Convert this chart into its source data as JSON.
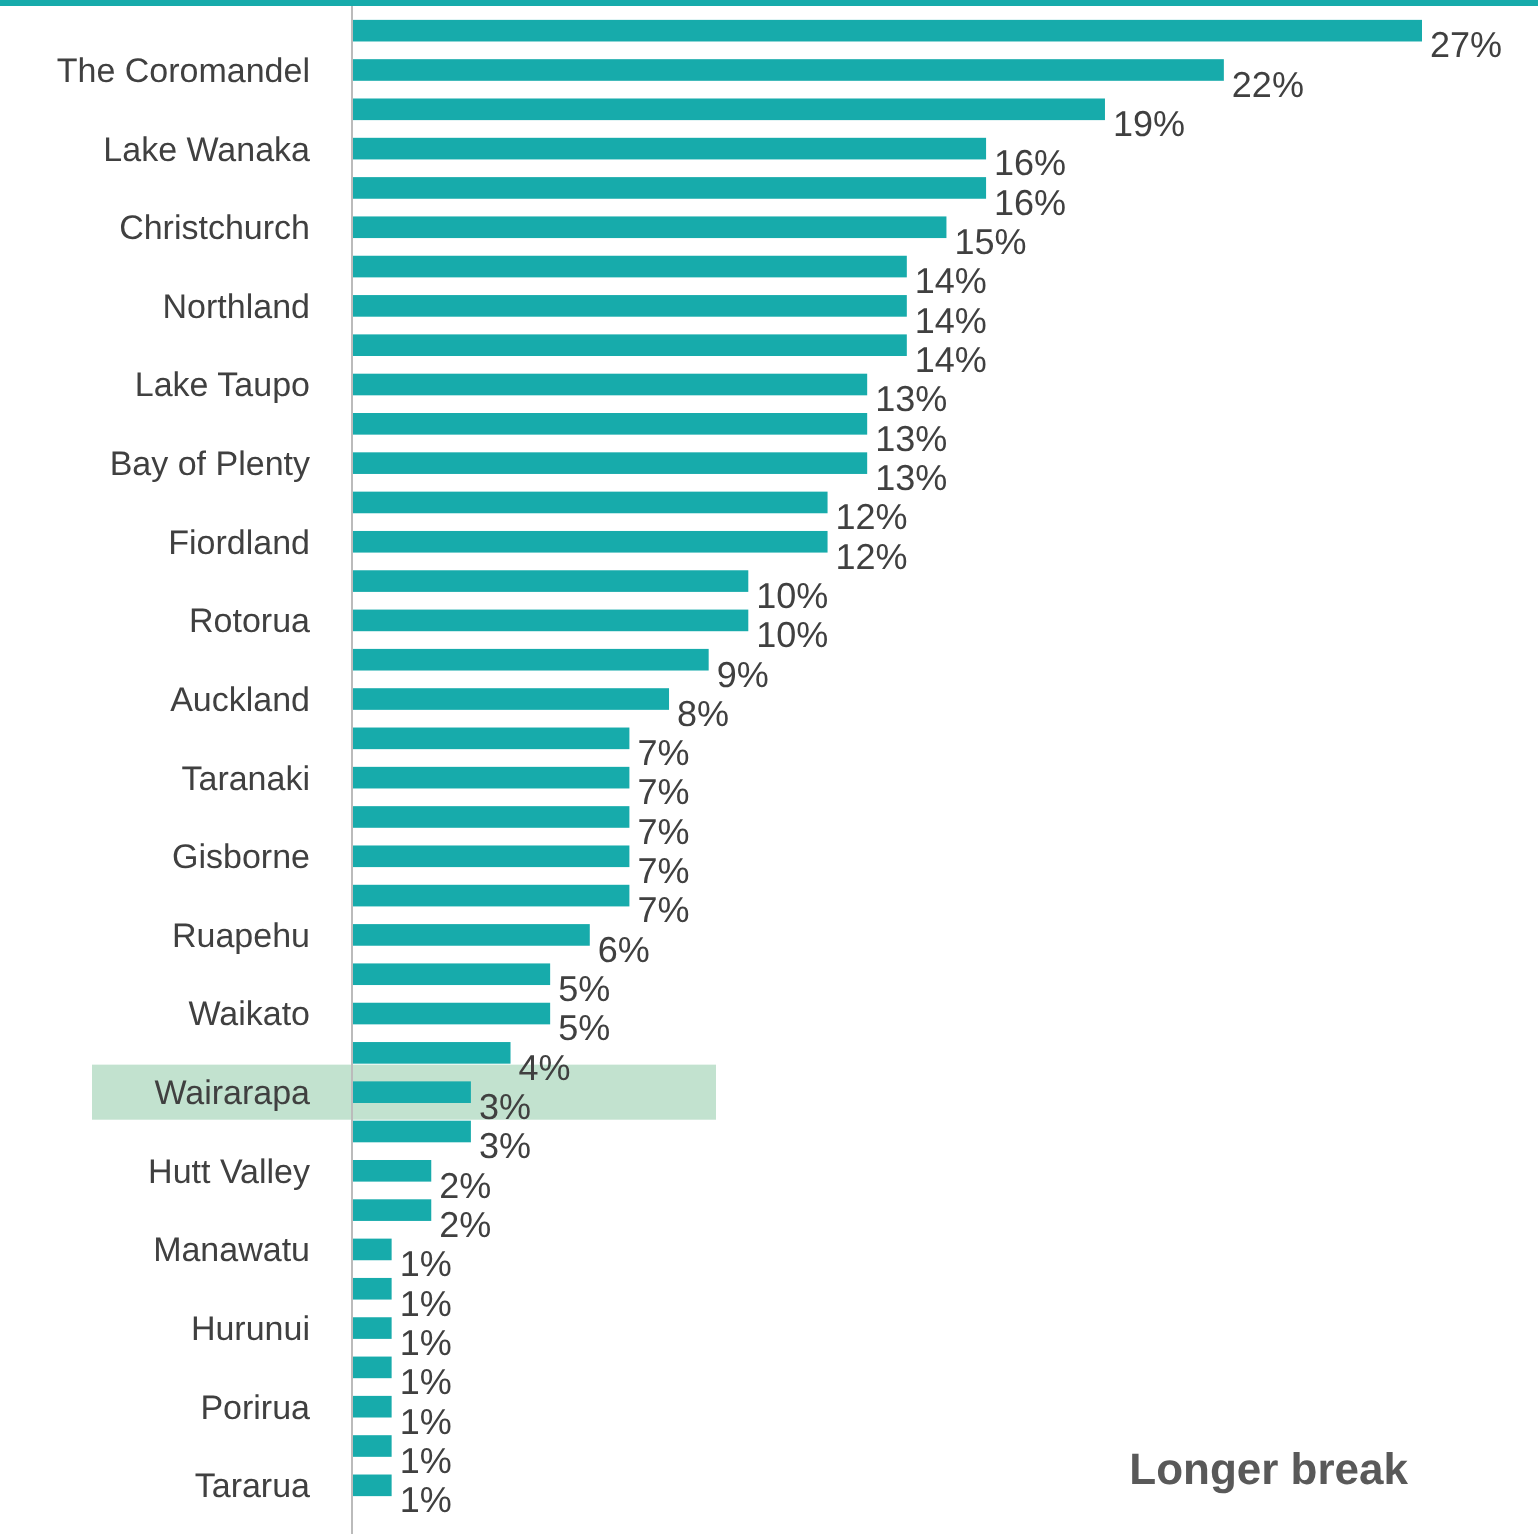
{
  "chart_data": {
    "type": "bar",
    "orientation": "horizontal",
    "title": "Longer break",
    "categories": [
      null,
      "The Coromandel",
      null,
      "Lake Wanaka",
      null,
      "Christchurch",
      null,
      "Northland",
      null,
      "Lake Taupo",
      null,
      "Bay of Plenty",
      null,
      "Fiordland",
      null,
      "Rotorua",
      null,
      "Auckland",
      null,
      "Taranaki",
      null,
      "Gisborne",
      null,
      "Ruapehu",
      null,
      "Waikato",
      null,
      "Wairarapa",
      null,
      "Hutt Valley",
      null,
      "Manawatu",
      null,
      "Hurunui",
      null,
      "Porirua",
      null,
      "Tararua"
    ],
    "values": [
      27,
      22,
      19,
      16,
      16,
      15,
      14,
      14,
      14,
      13,
      13,
      13,
      12,
      12,
      10,
      10,
      9,
      8,
      7,
      7,
      7,
      7,
      7,
      6,
      5,
      5,
      4,
      3,
      3,
      2,
      2,
      1,
      1,
      1,
      1,
      1,
      1,
      1
    ],
    "value_labels": [
      "27%",
      "22%",
      "19%",
      "16%",
      "16%",
      "15%",
      "14%",
      "14%",
      "14%",
      "13%",
      "13%",
      "13%",
      "12%",
      "12%",
      "10%",
      "10%",
      "9%",
      "8%",
      "7%",
      "7%",
      "7%",
      "7%",
      "7%",
      "6%",
      "5%",
      "5%",
      "4%",
      "3%",
      "3%",
      "2%",
      "2%",
      "1%",
      "1%",
      "1%",
      "1%",
      "1%",
      "1%",
      "1%"
    ],
    "color": "#17abab",
    "bands": [
      {
        "axis": "y",
        "from": "Wairarapa",
        "to": "Wairarapa",
        "color": "#bfe0cc"
      }
    ]
  }
}
